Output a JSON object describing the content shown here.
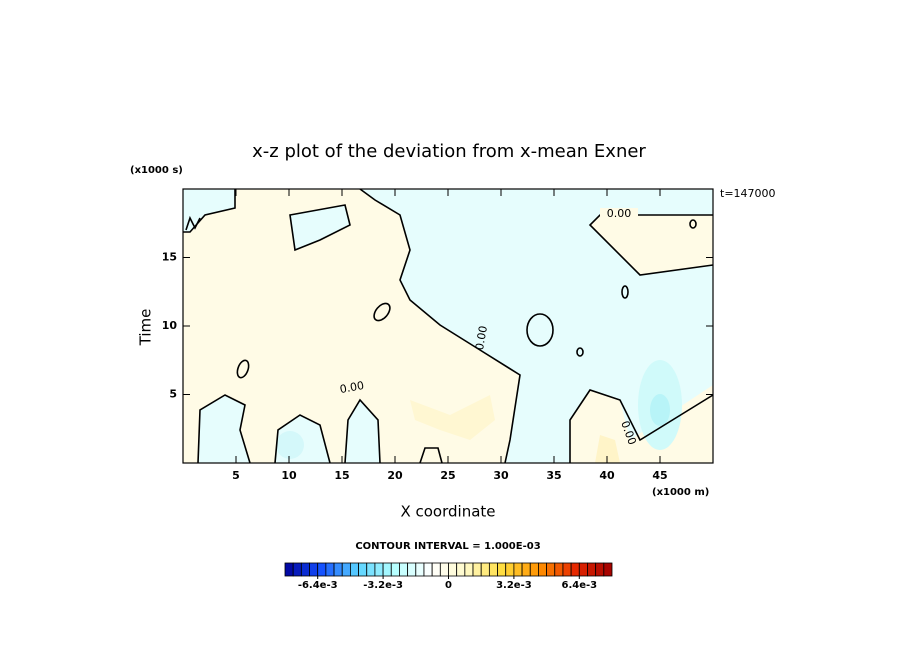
{
  "chart_data": {
    "type": "contour",
    "title": "x-z plot of the deviation from x-mean Exner",
    "x_label": "X coordinate",
    "y_label": "Time",
    "x_unit": "(x1000 m)",
    "y_unit": "(x1000 s)",
    "time_annotation": "t=147000",
    "contour_interval": "CONTOUR INTERVAL = 1.000E-03",
    "contour_labels": [
      "0.00",
      "0.00",
      "0.00",
      "0.00"
    ],
    "xlim": [
      0,
      50
    ],
    "ylim": [
      0,
      20
    ],
    "xticks": [
      5,
      10,
      15,
      20,
      25,
      30,
      35,
      40,
      45
    ],
    "yticks": [
      5,
      10,
      15
    ],
    "colorbar": {
      "lim": [
        -0.008,
        0.008
      ],
      "step": 0.0004,
      "colors": [
        "#00009a",
        "#1450ff",
        "#5ad2ff",
        "#b4ffff",
        "#ffffff",
        "#fffac8",
        "#ffdc3c",
        "#ff9100",
        "#e62800",
        "#a00000"
      ],
      "ticks": [
        {
          "value": -0.0064,
          "label": "-6.4e-3"
        },
        {
          "value": -0.0032,
          "label": "-3.2e-3"
        },
        {
          "value": 0,
          "label": "0"
        },
        {
          "value": 0.0032,
          "label": "3.2e-3"
        },
        {
          "value": 0.0064,
          "label": "6.4e-3"
        }
      ]
    }
  }
}
